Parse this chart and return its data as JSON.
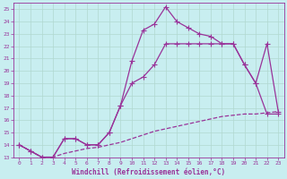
{
  "bg_color": "#c8eef0",
  "grid_color": "#b0d8d0",
  "line_color": "#993399",
  "xlim": [
    -0.5,
    23.5
  ],
  "ylim": [
    13,
    25.5
  ],
  "yticks": [
    13,
    14,
    15,
    16,
    17,
    18,
    19,
    20,
    21,
    22,
    23,
    24,
    25
  ],
  "xticks": [
    0,
    1,
    2,
    3,
    4,
    5,
    6,
    7,
    8,
    9,
    10,
    11,
    12,
    13,
    14,
    15,
    16,
    17,
    18,
    19,
    20,
    21,
    22,
    23
  ],
  "xlabel": "Windchill (Refroidissement éolien,°C)",
  "series1_x": [
    0,
    1,
    2,
    3,
    4,
    5,
    6,
    7,
    8,
    9,
    10,
    11,
    12,
    13,
    14,
    15,
    16,
    17,
    18,
    19,
    20,
    21,
    22,
    23
  ],
  "series1_y": [
    14.0,
    13.5,
    13.0,
    13.0,
    14.5,
    14.5,
    14.0,
    14.0,
    15.0,
    17.2,
    20.8,
    23.3,
    23.8,
    25.2,
    24.0,
    23.5,
    23.0,
    22.8,
    22.2,
    22.2,
    20.5,
    19.0,
    22.2,
    16.7
  ],
  "series2_x": [
    0,
    1,
    2,
    3,
    4,
    5,
    6,
    7,
    8,
    9,
    10,
    11,
    12,
    13,
    14,
    15,
    16,
    17,
    18,
    19,
    20,
    21,
    22,
    23
  ],
  "series2_y": [
    14.0,
    13.5,
    13.0,
    13.0,
    14.5,
    14.5,
    14.0,
    14.0,
    15.0,
    17.2,
    19.0,
    19.5,
    20.5,
    22.2,
    22.2,
    22.2,
    22.2,
    22.2,
    22.2,
    22.2,
    20.5,
    19.0,
    16.5,
    16.5
  ],
  "series3_x": [
    0,
    1,
    2,
    3,
    4,
    5,
    6,
    7,
    8,
    9,
    10,
    11,
    12,
    13,
    14,
    15,
    16,
    17,
    18,
    19,
    20,
    21,
    22,
    23
  ],
  "series3_y": [
    14.0,
    13.5,
    13.0,
    13.0,
    13.3,
    13.5,
    13.7,
    13.8,
    14.0,
    14.2,
    14.5,
    14.8,
    15.1,
    15.3,
    15.5,
    15.7,
    15.9,
    16.1,
    16.3,
    16.4,
    16.5,
    16.5,
    16.6,
    16.7
  ],
  "tick_fontsize": 4.5,
  "xlabel_fontsize": 5.5,
  "lw": 0.9,
  "ms": 3.0
}
